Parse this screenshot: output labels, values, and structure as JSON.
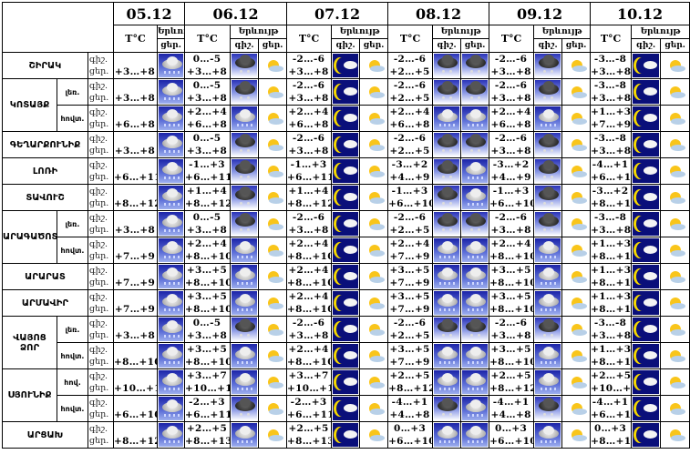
{
  "header": {
    "dates": [
      "05.12",
      "06.12",
      "07.12",
      "08.12",
      "09.12",
      "10.12"
    ],
    "temp_label": "T°C",
    "phenomenon_label": "Երևույթ",
    "night_label": "գիշ.",
    "day_label": "ցեր."
  },
  "regions": [
    {
      "name": "ՇԻՐԱԿ",
      "rows": [
        {
          "sub": "",
          "d05": {
            "temp": "+3…+8",
            "icon": "rain"
          },
          "days": [
            {
              "n": "0…-5",
              "d": "+3…+8",
              "i": [
                "snow",
                "partly"
              ]
            },
            {
              "n": "-2…-6",
              "d": "+3…+8",
              "i": [
                "moon",
                "partly"
              ]
            },
            {
              "n": "-2…-6",
              "d": "+2…+5",
              "i": [
                "snow",
                "snow"
              ]
            },
            {
              "n": "-2…-6",
              "d": "+3…+8",
              "i": [
                "snow",
                "partly"
              ]
            },
            {
              "n": "-3…-8",
              "d": "+3…+8",
              "i": [
                "moon",
                "partly"
              ]
            }
          ]
        }
      ]
    },
    {
      "name": "ԿՈՏԱՅՔ",
      "rows": [
        {
          "sub": "լեռ.",
          "d05": {
            "temp": "+3…+8",
            "icon": "rain"
          },
          "days": [
            {
              "n": "0…-5",
              "d": "+3…+8",
              "i": [
                "snow",
                "partly"
              ]
            },
            {
              "n": "-2…-6",
              "d": "+3…+8",
              "i": [
                "moon",
                "partly"
              ]
            },
            {
              "n": "-2…-6",
              "d": "+2…+5",
              "i": [
                "snow",
                "snow"
              ]
            },
            {
              "n": "-2…-6",
              "d": "+3…+8",
              "i": [
                "snow",
                "partly"
              ]
            },
            {
              "n": "-3…-8",
              "d": "+3…+8",
              "i": [
                "moon",
                "partly"
              ]
            }
          ]
        },
        {
          "sub": "հովտ.",
          "d05": {
            "temp": "+6…+8",
            "icon": "rain"
          },
          "days": [
            {
              "n": "+2…+4",
              "d": "+6…+8",
              "i": [
                "rain",
                "partly"
              ]
            },
            {
              "n": "+2…+4",
              "d": "+6…+8",
              "i": [
                "moon",
                "partly"
              ]
            },
            {
              "n": "+2…+4",
              "d": "+6…+8",
              "i": [
                "rain",
                "rain"
              ]
            },
            {
              "n": "+2…+4",
              "d": "+6…+8",
              "i": [
                "rain",
                "partly"
              ]
            },
            {
              "n": "+1…+3",
              "d": "+7…+9",
              "i": [
                "moon",
                "partly"
              ]
            }
          ]
        }
      ]
    },
    {
      "name": "ԳԵՂԱՐՔՈՒՆԻՔ",
      "rows": [
        {
          "sub": "",
          "d05": {
            "temp": "+3…+8",
            "icon": "rain"
          },
          "days": [
            {
              "n": "0…-5",
              "d": "+3…+8",
              "i": [
                "snow",
                "partly"
              ]
            },
            {
              "n": "-2…-6",
              "d": "+3…+8",
              "i": [
                "moon",
                "partly"
              ]
            },
            {
              "n": "-2…-6",
              "d": "+2…+5",
              "i": [
                "snow",
                "snow"
              ]
            },
            {
              "n": "-2…-6",
              "d": "+3…+8",
              "i": [
                "snow",
                "partly"
              ]
            },
            {
              "n": "-3…-8",
              "d": "+3…+8",
              "i": [
                "moon",
                "partly"
              ]
            }
          ]
        }
      ]
    },
    {
      "name": "ԼՈՌԻ",
      "rows": [
        {
          "sub": "",
          "d05": {
            "temp": "+6…+11",
            "icon": "rain"
          },
          "days": [
            {
              "n": "-1…+3",
              "d": "+6…+11",
              "i": [
                "snow",
                "partly"
              ]
            },
            {
              "n": "-1…+3",
              "d": "+6…+11",
              "i": [
                "moon",
                "partly"
              ]
            },
            {
              "n": "-3…+2",
              "d": "+4…+9",
              "i": [
                "snow",
                "rain"
              ]
            },
            {
              "n": "-3…+2",
              "d": "+4…+9",
              "i": [
                "snow",
                "partly"
              ]
            },
            {
              "n": "-4…+1",
              "d": "+6…+11",
              "i": [
                "moon",
                "partly"
              ]
            }
          ]
        }
      ]
    },
    {
      "name": "ՏԱՎՈՒՇ",
      "rows": [
        {
          "sub": "",
          "d05": {
            "temp": "+8…+12",
            "icon": "rain"
          },
          "days": [
            {
              "n": "+1…+4",
              "d": "+8…+12",
              "i": [
                "snow",
                "partly"
              ]
            },
            {
              "n": "+1…+4",
              "d": "+8…+12",
              "i": [
                "moon",
                "partly"
              ]
            },
            {
              "n": "-1…+3",
              "d": "+6…+10",
              "i": [
                "snow",
                "rain"
              ]
            },
            {
              "n": "-1…+3",
              "d": "+6…+10",
              "i": [
                "snow",
                "partly"
              ]
            },
            {
              "n": "-3…+2",
              "d": "+8…+12",
              "i": [
                "moon",
                "partly"
              ]
            }
          ]
        }
      ]
    },
    {
      "name": "ԱՐԱԳԱԾՈՏՆ",
      "rows": [
        {
          "sub": "լեռ.",
          "d05": {
            "temp": "+3…+8",
            "icon": "rain"
          },
          "days": [
            {
              "n": "0…-5",
              "d": "+3…+8",
              "i": [
                "snow",
                "partly"
              ]
            },
            {
              "n": "-2…-6",
              "d": "+3…+8",
              "i": [
                "moon",
                "partly"
              ]
            },
            {
              "n": "-2…-6",
              "d": "+2…+5",
              "i": [
                "snow",
                "snow"
              ]
            },
            {
              "n": "-2…-6",
              "d": "+3…+8",
              "i": [
                "snow",
                "partly"
              ]
            },
            {
              "n": "-3…-8",
              "d": "+3…+8",
              "i": [
                "moon",
                "partly"
              ]
            }
          ]
        },
        {
          "sub": "հովտ.",
          "d05": {
            "temp": "+7…+9",
            "icon": "rain"
          },
          "days": [
            {
              "n": "+2…+4",
              "d": "+8…+10",
              "i": [
                "rain",
                "partly"
              ]
            },
            {
              "n": "+2…+4",
              "d": "+8…+10",
              "i": [
                "moon",
                "partly"
              ]
            },
            {
              "n": "+2…+4",
              "d": "+7…+9",
              "i": [
                "rain",
                "rain"
              ]
            },
            {
              "n": "+2…+4",
              "d": "+8…+10",
              "i": [
                "rain",
                "partly"
              ]
            },
            {
              "n": "+1…+3",
              "d": "+8…+10",
              "i": [
                "moon",
                "partly"
              ]
            }
          ]
        }
      ]
    },
    {
      "name": "ԱՐԱՐԱՏ",
      "rows": [
        {
          "sub": "",
          "d05": {
            "temp": "+7…+9",
            "icon": "rain"
          },
          "days": [
            {
              "n": "+3…+5",
              "d": "+8…+10",
              "i": [
                "rain",
                "partly"
              ]
            },
            {
              "n": "+2…+4",
              "d": "+8…+10",
              "i": [
                "moon",
                "partly"
              ]
            },
            {
              "n": "+3…+5",
              "d": "+7…+9",
              "i": [
                "rain",
                "rain"
              ]
            },
            {
              "n": "+3…+5",
              "d": "+8…+10",
              "i": [
                "rain",
                "partly"
              ]
            },
            {
              "n": "+1…+3",
              "d": "+8…+10",
              "i": [
                "moon",
                "partly"
              ]
            }
          ]
        }
      ]
    },
    {
      "name": "ԱՐՄԱՎԻՐ",
      "rows": [
        {
          "sub": "",
          "d05": {
            "temp": "+7…+9",
            "icon": "rain"
          },
          "days": [
            {
              "n": "+3…+5",
              "d": "+8…+10",
              "i": [
                "rain",
                "partly"
              ]
            },
            {
              "n": "+2…+4",
              "d": "+8…+10",
              "i": [
                "moon",
                "partly"
              ]
            },
            {
              "n": "+3…+5",
              "d": "+7…+9",
              "i": [
                "rain",
                "rain"
              ]
            },
            {
              "n": "+3…+5",
              "d": "+8…+10",
              "i": [
                "rain",
                "partly"
              ]
            },
            {
              "n": "+1…+3",
              "d": "+8…+10",
              "i": [
                "moon",
                "partly"
              ]
            }
          ]
        }
      ]
    },
    {
      "name": "ՎԱՅՈՑ ՁՈՐ",
      "rows": [
        {
          "sub": "լեռ.",
          "d05": {
            "temp": "+3…+8",
            "icon": "rain"
          },
          "days": [
            {
              "n": "0…-5",
              "d": "+3…+8",
              "i": [
                "snow",
                "partly"
              ]
            },
            {
              "n": "-2…-6",
              "d": "+3…+8",
              "i": [
                "moon",
                "partly"
              ]
            },
            {
              "n": "-2…-6",
              "d": "+2…+5",
              "i": [
                "snow",
                "snow"
              ]
            },
            {
              "n": "-2…-6",
              "d": "+3…+8",
              "i": [
                "snow",
                "partly"
              ]
            },
            {
              "n": "-3…-8",
              "d": "+3…+8",
              "i": [
                "moon",
                "partly"
              ]
            }
          ]
        },
        {
          "sub": "հովտ.",
          "d05": {
            "temp": "+8…+10",
            "icon": "rain"
          },
          "days": [
            {
              "n": "+3…+5",
              "d": "+8…+10",
              "i": [
                "rain",
                "partly"
              ]
            },
            {
              "n": "+2…+4",
              "d": "+8…+10",
              "i": [
                "moon",
                "partly"
              ]
            },
            {
              "n": "+3…+5",
              "d": "+7…+9",
              "i": [
                "rain",
                "rain"
              ]
            },
            {
              "n": "+3…+5",
              "d": "+8…+10",
              "i": [
                "rain",
                "partly"
              ]
            },
            {
              "n": "+1…+3",
              "d": "+8…+10",
              "i": [
                "moon",
                "partly"
              ]
            }
          ]
        }
      ]
    },
    {
      "name": "ՍՅՈՒՆԻՔ",
      "rows": [
        {
          "sub": "հով.",
          "d05": {
            "temp": "+10…+13",
            "icon": "rain"
          },
          "days": [
            {
              "n": "+3…+7",
              "d": "+10…+14",
              "i": [
                "rain",
                "partly"
              ]
            },
            {
              "n": "+3…+7",
              "d": "+10…+14",
              "i": [
                "moon",
                "partly"
              ]
            },
            {
              "n": "+2…+5",
              "d": "+8…+12",
              "i": [
                "rain",
                "rain"
              ]
            },
            {
              "n": "+2…+5",
              "d": "+8…+12",
              "i": [
                "rain",
                "partly"
              ]
            },
            {
              "n": "+2…+5",
              "d": "+10…+13",
              "i": [
                "moon",
                "partly"
              ]
            }
          ]
        },
        {
          "sub": "հովտ.",
          "d05": {
            "temp": "+6…+10",
            "icon": "rain"
          },
          "days": [
            {
              "n": "-2…+3",
              "d": "+6…+11",
              "i": [
                "snow",
                "partly"
              ]
            },
            {
              "n": "-2…+3",
              "d": "+6…+11",
              "i": [
                "moon",
                "partly"
              ]
            },
            {
              "n": "-4…+1",
              "d": "+4…+8",
              "i": [
                "snow",
                "rain"
              ]
            },
            {
              "n": "-4…+1",
              "d": "+4…+8",
              "i": [
                "snow",
                "partly"
              ]
            },
            {
              "n": "-4…+1",
              "d": "+6…+10",
              "i": [
                "moon",
                "partly"
              ]
            }
          ]
        }
      ]
    },
    {
      "name": "ԱՐՑԱԽ",
      "rows": [
        {
          "sub": "",
          "d05": {
            "temp": "+8…+12",
            "icon": "rain"
          },
          "days": [
            {
              "n": "+2…+5",
              "d": "+8…+13",
              "i": [
                "rain",
                "partly"
              ]
            },
            {
              "n": "+2…+5",
              "d": "+8…+13",
              "i": [
                "moon",
                "partly"
              ]
            },
            {
              "n": "0…+3",
              "d": "+6…+10",
              "i": [
                "rain",
                "rain"
              ]
            },
            {
              "n": "0…+3",
              "d": "+6…+10",
              "i": [
                "rain",
                "partly"
              ]
            },
            {
              "n": "0…+3",
              "d": "+8…+11",
              "i": [
                "moon",
                "partly"
              ]
            }
          ]
        }
      ]
    }
  ]
}
